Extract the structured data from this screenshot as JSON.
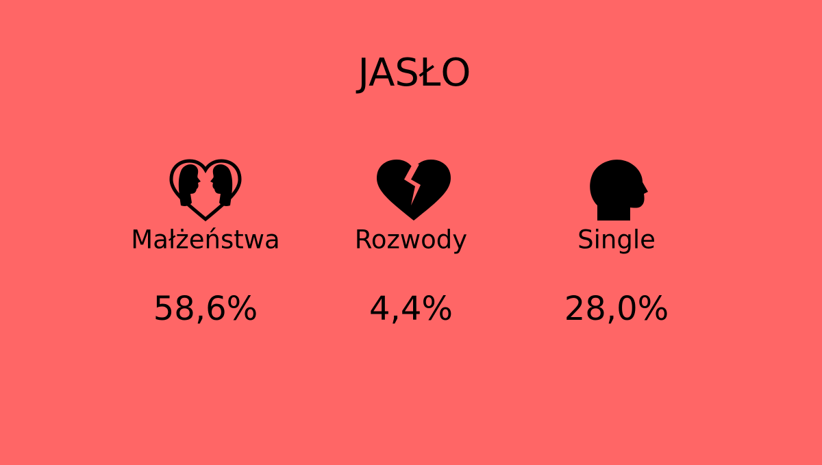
{
  "title": "JASŁO",
  "items": [
    {
      "label": "Małżeństwa",
      "value": "58,6%"
    },
    {
      "label": "Rozwody",
      "value": "4,4%"
    },
    {
      "label": "Single",
      "value": "28,0%"
    }
  ]
}
